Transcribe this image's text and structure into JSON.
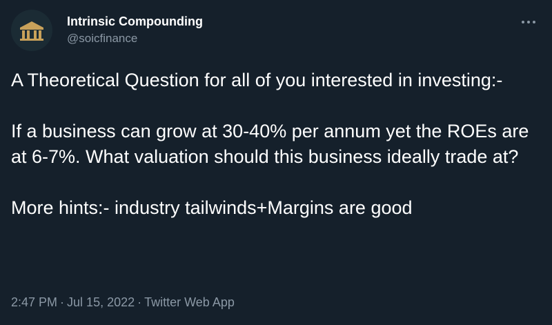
{
  "author": {
    "display_name": "Intrinsic Compounding",
    "handle": "@soicfinance",
    "avatar_icon": "bank-building-icon"
  },
  "more_icon": "more-options-icon",
  "tweet": {
    "paragraphs": [
      "A Theoretical Question for all of you interested in investing:-",
      "If a business can grow at 30-40% per annum yet the ROEs are at 6-7%. What valuation should this business ideally trade at?",
      "More hints:- industry tailwinds+Margins are good"
    ]
  },
  "meta": {
    "time": "2:47 PM",
    "date": "Jul 15, 2022",
    "separator": "·",
    "source": "Twitter Web App"
  },
  "colors": {
    "background": "#15202b",
    "text_primary": "#ffffff",
    "text_secondary": "#8b98a5",
    "avatar_gold": "#c8a15a"
  }
}
